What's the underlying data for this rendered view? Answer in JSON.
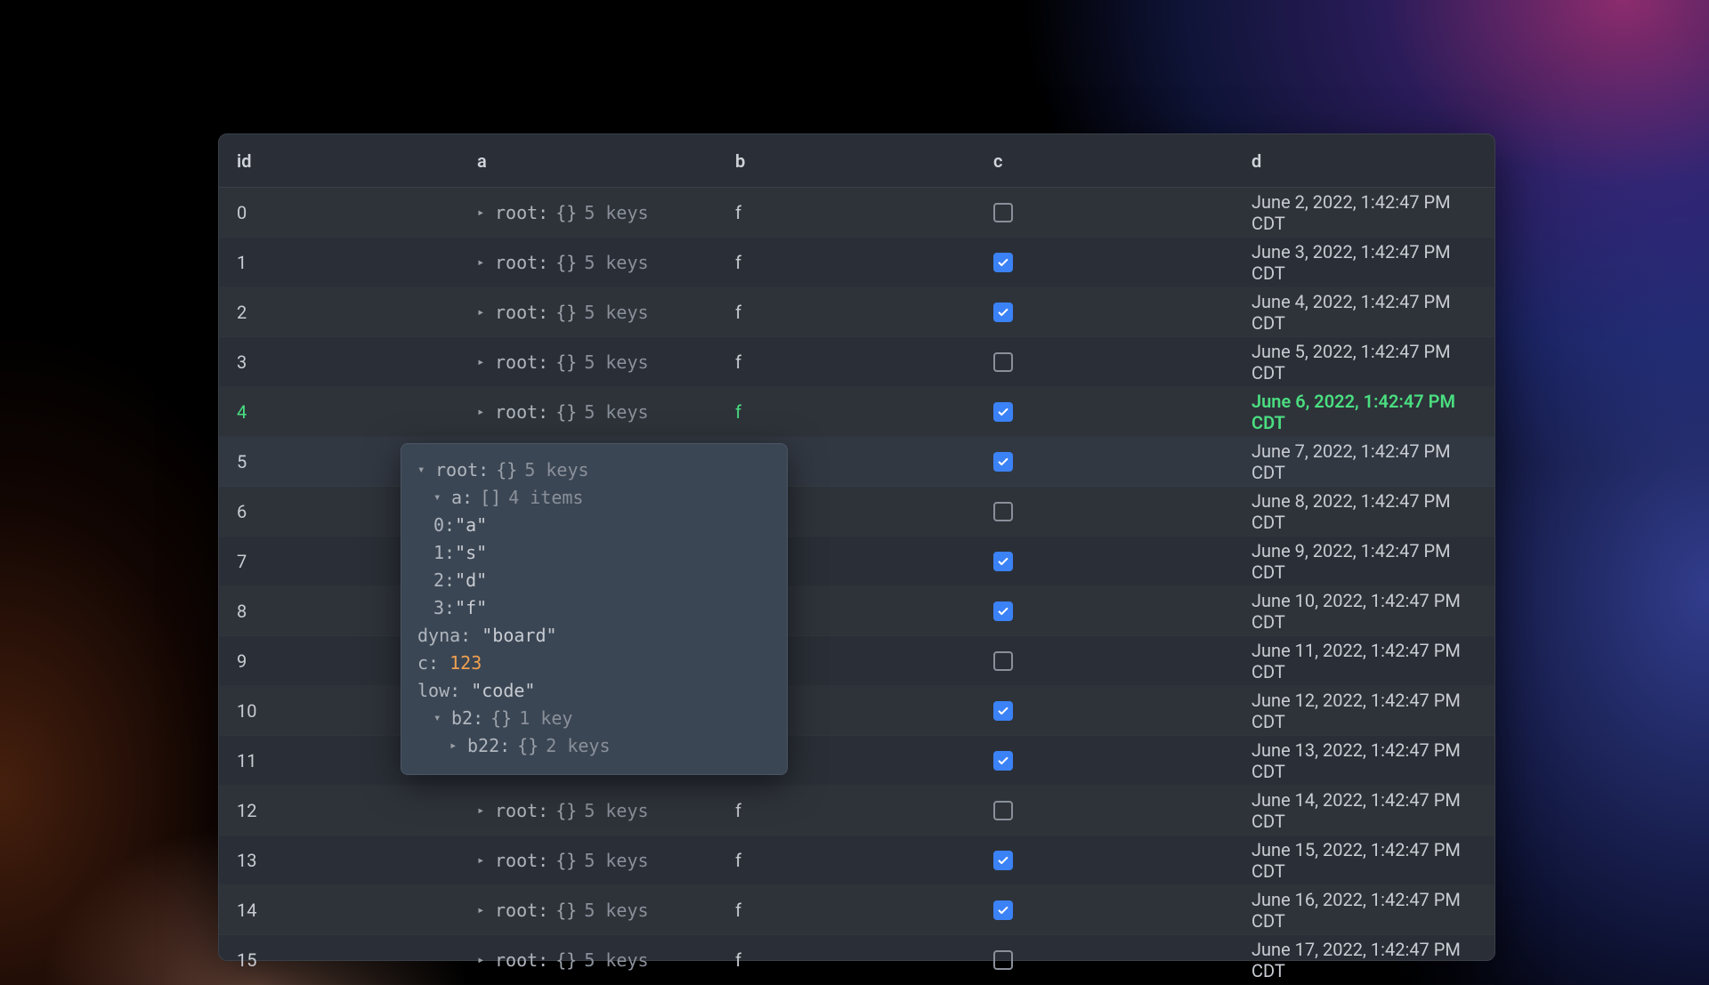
{
  "table": {
    "columns": [
      "id",
      "a",
      "b",
      "c",
      "d"
    ],
    "root_label": "root",
    "root_brace": "{}",
    "root_count": "5 keys",
    "b_value": "f",
    "rows": [
      {
        "id": "0",
        "checked": false,
        "date": "June 2, 2022, 1:42:47 PM CDT",
        "showRoot": true,
        "showB": true,
        "highlight": false
      },
      {
        "id": "1",
        "checked": true,
        "date": "June 3, 2022, 1:42:47 PM CDT",
        "showRoot": true,
        "showB": true,
        "highlight": false
      },
      {
        "id": "2",
        "checked": true,
        "date": "June 4, 2022, 1:42:47 PM CDT",
        "showRoot": true,
        "showB": true,
        "highlight": false
      },
      {
        "id": "3",
        "checked": false,
        "date": "June 5, 2022, 1:42:47 PM CDT",
        "showRoot": true,
        "showB": true,
        "highlight": false
      },
      {
        "id": "4",
        "checked": true,
        "date": "June 6, 2022, 1:42:47 PM CDT",
        "showRoot": true,
        "showB": true,
        "highlight": true
      },
      {
        "id": "5",
        "checked": true,
        "date": "June 7, 2022, 1:42:47 PM CDT",
        "showRoot": false,
        "showB": false,
        "highlight": false
      },
      {
        "id": "6",
        "checked": false,
        "date": "June 8, 2022, 1:42:47 PM CDT",
        "showRoot": false,
        "showB": false,
        "highlight": false
      },
      {
        "id": "7",
        "checked": true,
        "date": "June 9, 2022, 1:42:47 PM CDT",
        "showRoot": false,
        "showB": false,
        "highlight": false
      },
      {
        "id": "8",
        "checked": true,
        "date": "June 10, 2022, 1:42:47 PM CDT",
        "showRoot": false,
        "showB": false,
        "highlight": false
      },
      {
        "id": "9",
        "checked": false,
        "date": "June 11, 2022, 1:42:47 PM CDT",
        "showRoot": false,
        "showB": false,
        "highlight": false
      },
      {
        "id": "10",
        "checked": true,
        "date": "June 12, 2022, 1:42:47 PM CDT",
        "showRoot": false,
        "showB": false,
        "highlight": false
      },
      {
        "id": "11",
        "checked": true,
        "date": "June 13, 2022, 1:42:47 PM CDT",
        "showRoot": false,
        "showB": false,
        "highlight": false
      },
      {
        "id": "12",
        "checked": false,
        "date": "June 14, 2022, 1:42:47 PM CDT",
        "showRoot": true,
        "showB": true,
        "highlight": false
      },
      {
        "id": "13",
        "checked": true,
        "date": "June 15, 2022, 1:42:47 PM CDT",
        "showRoot": true,
        "showB": true,
        "highlight": false
      },
      {
        "id": "14",
        "checked": true,
        "date": "June 16, 2022, 1:42:47 PM CDT",
        "showRoot": true,
        "showB": true,
        "highlight": false
      },
      {
        "id": "15",
        "checked": false,
        "date": "June 17, 2022, 1:42:47 PM CDT",
        "showRoot": true,
        "showB": true,
        "highlight": false
      }
    ]
  },
  "popover": {
    "root": {
      "key": "root",
      "brace": "{}",
      "count": "5 keys"
    },
    "a": {
      "key": "a",
      "brace": "[]",
      "count": "4 items",
      "items": [
        {
          "idx": "0",
          "val": "\"a\""
        },
        {
          "idx": "1",
          "val": "\"s\""
        },
        {
          "idx": "2",
          "val": "\"d\""
        },
        {
          "idx": "3",
          "val": "\"f\""
        }
      ]
    },
    "dyna": {
      "key": "dyna",
      "val": "\"board\""
    },
    "c": {
      "key": "c",
      "val": "123"
    },
    "low": {
      "key": "low",
      "val": "\"code\""
    },
    "b2": {
      "key": "b2",
      "brace": "{}",
      "count": "1 key"
    },
    "b22": {
      "key": "b22",
      "brace": "{}",
      "count": "2 keys"
    }
  },
  "colors": {
    "panel_bg": "#2a2f37",
    "row_text": "#c8ccd2",
    "highlight_text": "#4ade80",
    "checkbox_checked": "#3b82f6",
    "popover_bg": "#3b4654",
    "number_color": "#f0a050"
  }
}
